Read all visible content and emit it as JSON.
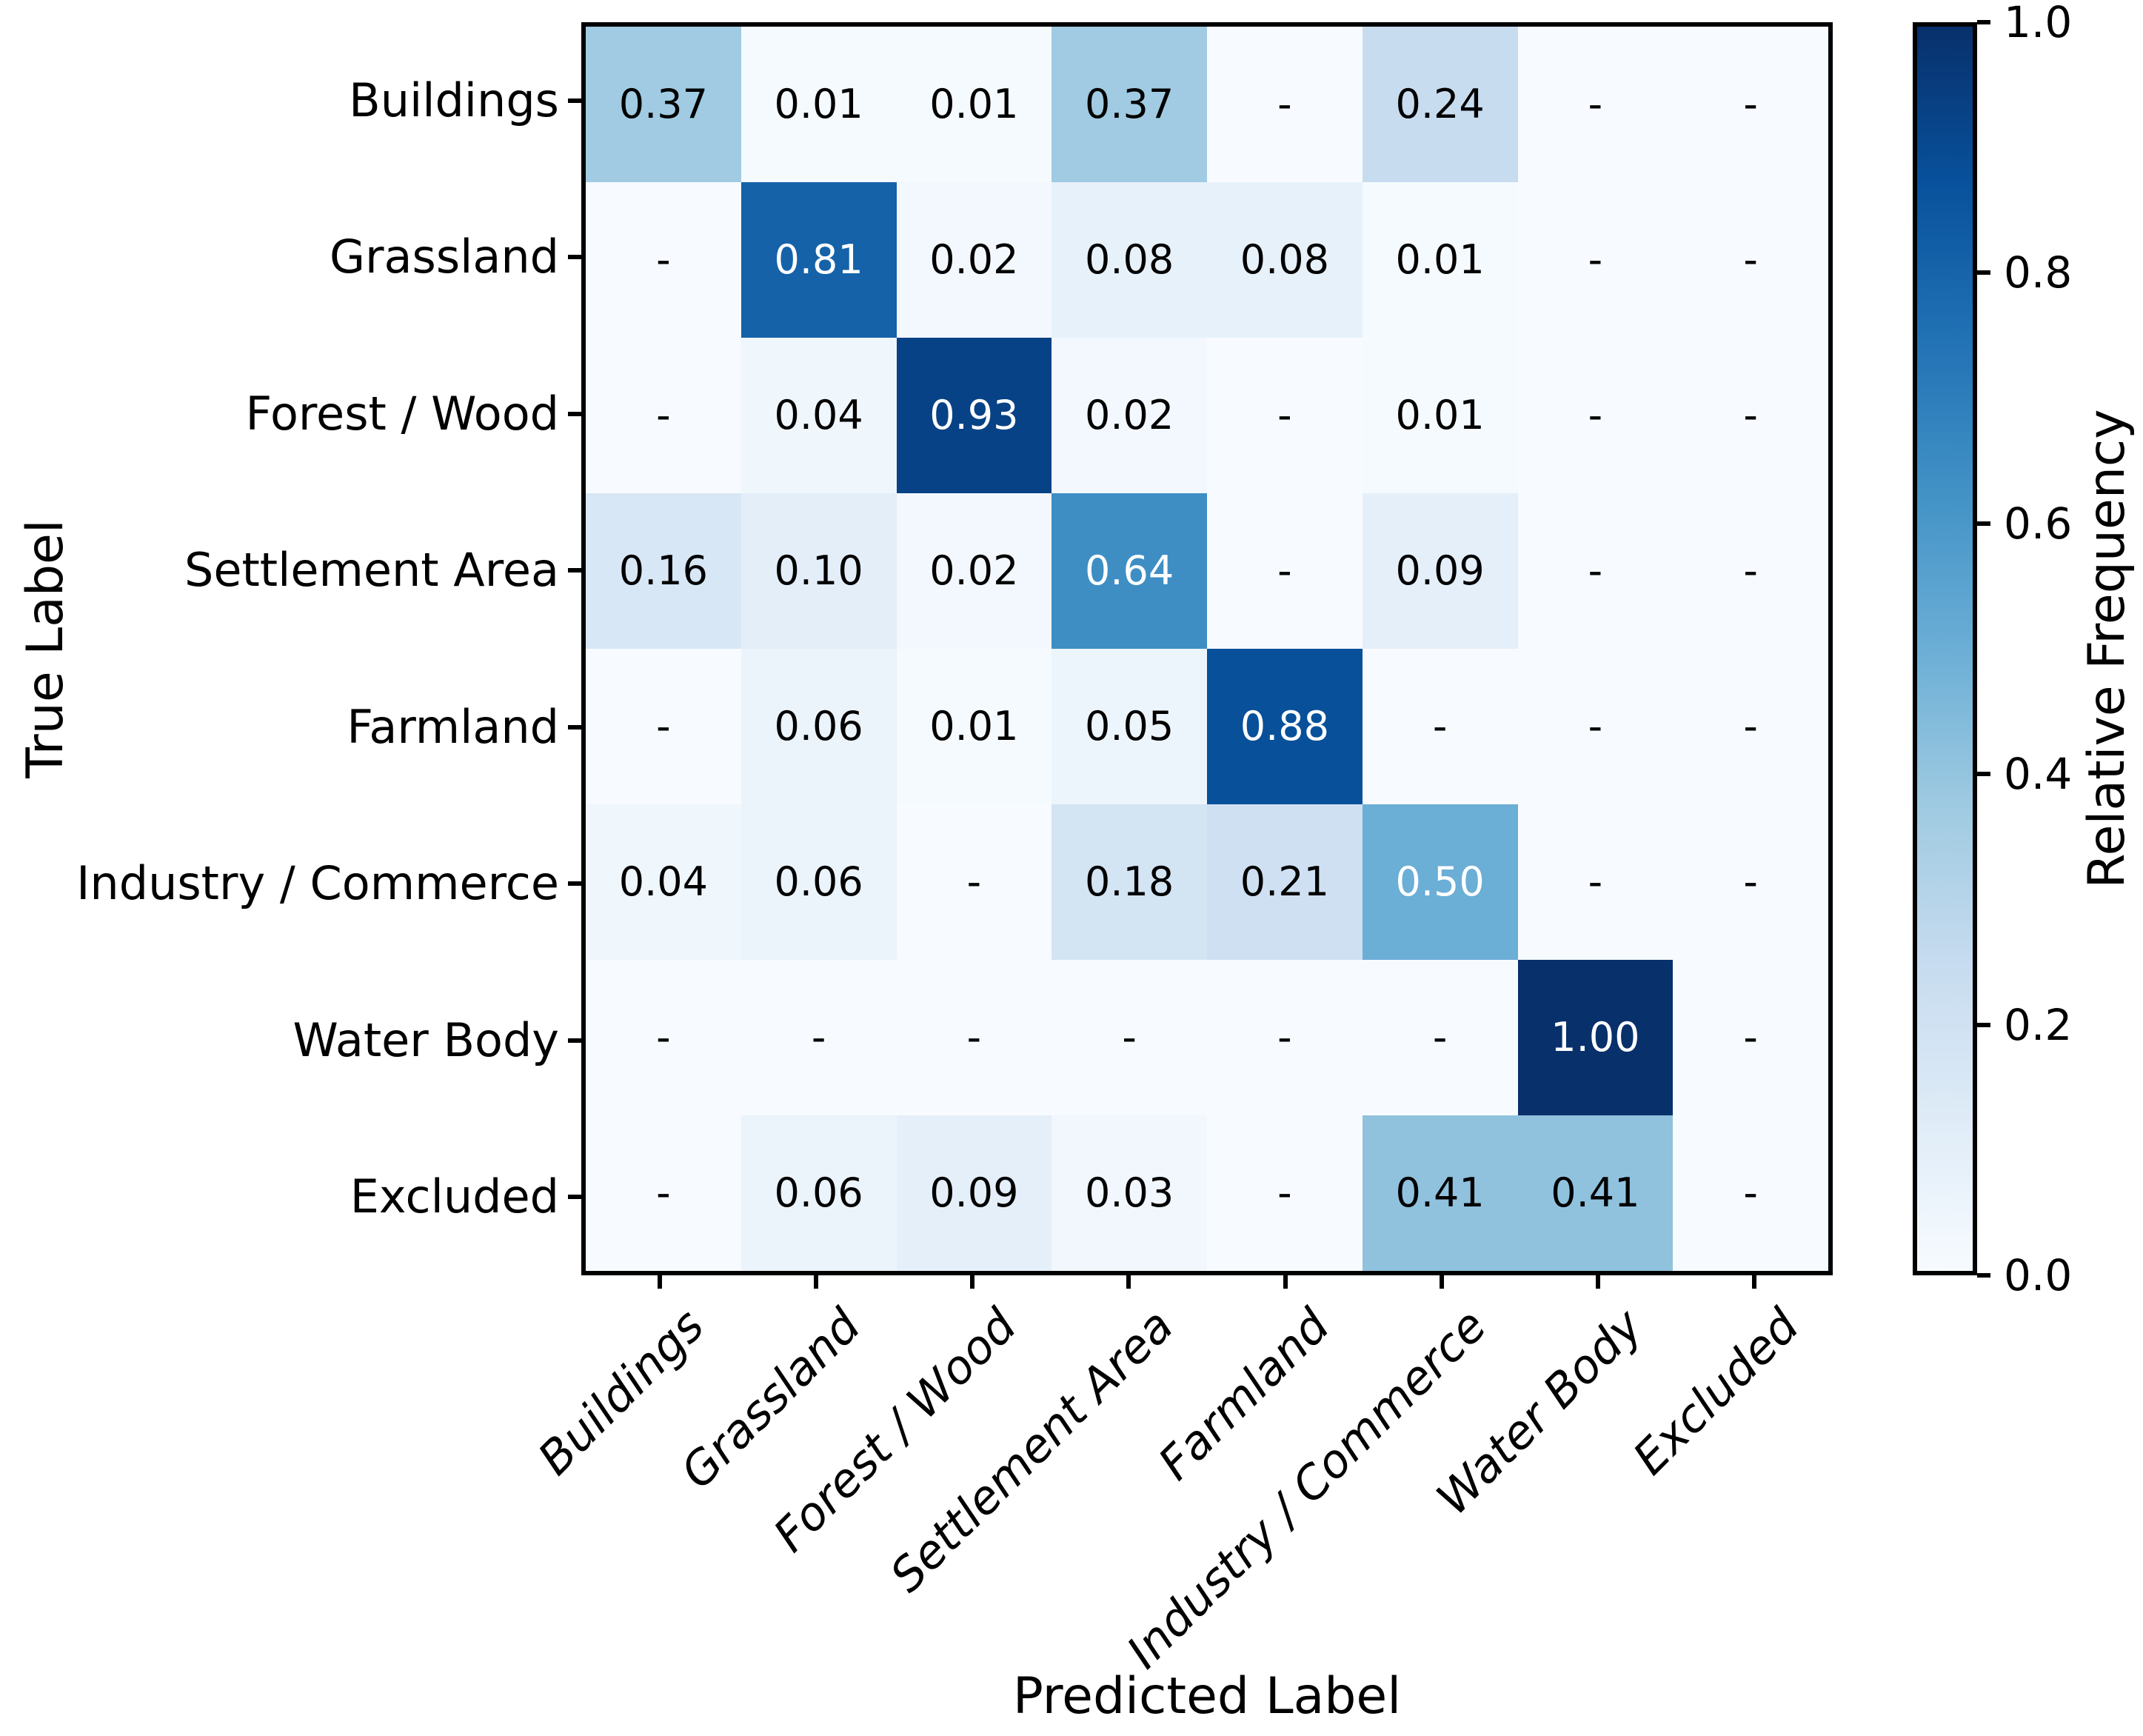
{
  "figure": {
    "background": "#ffffff",
    "text_color": "#000000"
  },
  "axes": {
    "xlabel": "Predicted Label",
    "ylabel": "True Label"
  },
  "chart_data": {
    "type": "heatmap",
    "title": "",
    "xlabel": "Predicted Label",
    "ylabel": "True Label",
    "x_tick_labels": [
      "Buildings",
      "Grassland",
      "Forest / Wood",
      "Settlement Area",
      "Farmland",
      "Industry / Commerce",
      "Water Body",
      "Excluded"
    ],
    "y_tick_labels": [
      "Buildings",
      "Grassland",
      "Forest / Wood",
      "Settlement Area",
      "Farmland",
      "Industry / Commerce",
      "Water Body",
      "Excluded"
    ],
    "matrix": [
      [
        0.37,
        0.01,
        0.01,
        0.37,
        null,
        0.24,
        null,
        null
      ],
      [
        null,
        0.81,
        0.02,
        0.08,
        0.08,
        0.01,
        null,
        null
      ],
      [
        null,
        0.04,
        0.93,
        0.02,
        null,
        0.01,
        null,
        null
      ],
      [
        0.16,
        0.1,
        0.02,
        0.64,
        null,
        0.09,
        null,
        null
      ],
      [
        null,
        0.06,
        0.01,
        0.05,
        0.88,
        null,
        null,
        null
      ],
      [
        0.04,
        0.06,
        null,
        0.18,
        0.21,
        0.5,
        null,
        null
      ],
      [
        null,
        null,
        null,
        null,
        null,
        null,
        1.0,
        null
      ],
      [
        null,
        0.06,
        0.09,
        0.03,
        null,
        0.41,
        0.41,
        null
      ]
    ],
    "cell_text": [
      [
        "0.37",
        "0.01",
        "0.01",
        "0.37",
        "-",
        "0.24",
        "-",
        "-"
      ],
      [
        "-",
        "0.81",
        "0.02",
        "0.08",
        "0.08",
        "0.01",
        "-",
        "-"
      ],
      [
        "-",
        "0.04",
        "0.93",
        "0.02",
        "-",
        "0.01",
        "-",
        "-"
      ],
      [
        "0.16",
        "0.10",
        "0.02",
        "0.64",
        "-",
        "0.09",
        "-",
        "-"
      ],
      [
        "-",
        "0.06",
        "0.01",
        "0.05",
        "0.88",
        "-",
        "-",
        "-"
      ],
      [
        "0.04",
        "0.06",
        "-",
        "0.18",
        "0.21",
        "0.50",
        "-",
        "-"
      ],
      [
        "-",
        "-",
        "-",
        "-",
        "-",
        "-",
        "1.00",
        "-"
      ],
      [
        "-",
        "0.06",
        "0.09",
        "0.03",
        "-",
        "0.41",
        "0.41",
        "-"
      ]
    ],
    "value_range": [
      0,
      1
    ],
    "grid": false,
    "colormap": {
      "name": "Blues",
      "stops": [
        [
          0.0,
          "#f7fbff"
        ],
        [
          0.125,
          "#deebf7"
        ],
        [
          0.25,
          "#c6dbef"
        ],
        [
          0.375,
          "#9ecae1"
        ],
        [
          0.5,
          "#6baed6"
        ],
        [
          0.625,
          "#4292c6"
        ],
        [
          0.75,
          "#2171b5"
        ],
        [
          0.875,
          "#08519c"
        ],
        [
          1.0,
          "#08306b"
        ]
      ]
    },
    "text_color_threshold": 0.5,
    "cell_text_color_low": "#000000",
    "cell_text_color_high": "#ffffff",
    "colorbar": {
      "label": "Relative Frequency",
      "position": "right",
      "tick_labels": [
        "1.0",
        "0.8",
        "0.6",
        "0.4",
        "0.2",
        "0.0"
      ],
      "tick_values": [
        1.0,
        0.8,
        0.6,
        0.4,
        0.2,
        0.0
      ],
      "range": [
        0,
        1
      ]
    }
  }
}
